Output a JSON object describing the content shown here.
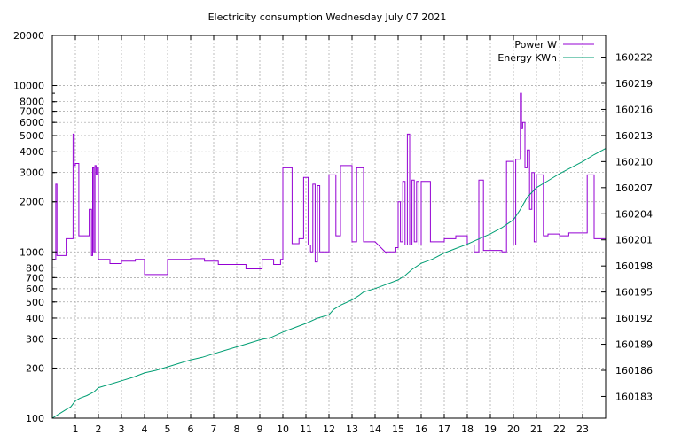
{
  "chart_data": {
    "type": "line",
    "title": "Electricity consumption Wednesday July 07 2021",
    "xlabel": "",
    "ylabel": "",
    "xlim": [
      0,
      24
    ],
    "x_ticks": [
      1,
      2,
      3,
      4,
      5,
      6,
      7,
      8,
      9,
      10,
      11,
      12,
      13,
      14,
      15,
      16,
      17,
      18,
      19,
      20,
      21,
      22,
      23
    ],
    "y_scale": "log",
    "ylim": [
      100,
      20000
    ],
    "y_ticks": [
      100,
      200,
      300,
      400,
      500,
      600,
      700,
      800,
      1000,
      2000,
      3000,
      4000,
      5000,
      6000,
      7000,
      8000,
      10000,
      20000
    ],
    "y2lim": [
      160180.5,
      160224.5
    ],
    "y2_ticks": [
      160183,
      160186,
      160189,
      160192,
      160195,
      160198,
      160201,
      160204,
      160207,
      160210,
      160213,
      160216,
      160219,
      160222
    ],
    "grid": true,
    "legend_position": "top-right",
    "series": [
      {
        "name": "Power W",
        "color": "#9400d3",
        "axis": "left",
        "x": [
          0,
          0.15,
          0.15,
          0.2,
          0.2,
          0.6,
          0.6,
          0.9,
          0.9,
          0.95,
          0.95,
          1.0,
          1.0,
          1.15,
          1.15,
          1.6,
          1.6,
          1.7,
          1.7,
          1.75,
          1.75,
          1.8,
          1.8,
          1.85,
          1.85,
          1.9,
          1.9,
          1.95,
          1.95,
          2.0,
          2.0,
          2.5,
          2.5,
          3.0,
          3.0,
          3.6,
          3.6,
          4.0,
          4.0,
          5.0,
          5.0,
          6.0,
          6.0,
          6.6,
          6.6,
          7.2,
          7.2,
          8.4,
          8.4,
          9.1,
          9.1,
          9.6,
          9.6,
          9.9,
          9.9,
          10.0,
          10.0,
          10.4,
          10.4,
          10.7,
          10.7,
          10.9,
          10.9,
          11.1,
          11.1,
          11.2,
          11.2,
          11.3,
          11.3,
          11.4,
          11.4,
          11.5,
          11.5,
          11.6,
          11.6,
          12.0,
          12.0,
          12.3,
          12.3,
          12.5,
          12.5,
          13.0,
          13.0,
          13.2,
          13.2,
          13.5,
          13.5,
          14.0,
          14.5,
          14.5,
          14.9,
          14.9,
          15.0,
          15.0,
          15.1,
          15.1,
          15.2,
          15.2,
          15.3,
          15.3,
          15.4,
          15.4,
          15.5,
          15.5,
          15.6,
          15.6,
          15.7,
          15.7,
          15.8,
          15.8,
          15.9,
          15.9,
          16.0,
          16.0,
          16.4,
          16.4,
          17.0,
          17.0,
          17.5,
          17.5,
          18.0,
          18.0,
          18.3,
          18.3,
          18.5,
          18.5,
          18.7,
          18.7,
          19.5,
          19.5,
          19.7,
          19.7,
          20.0,
          20.0,
          20.1,
          20.1,
          20.3,
          20.3,
          20.35,
          20.35,
          20.4,
          20.4,
          20.5,
          20.5,
          20.6,
          20.6,
          20.7,
          20.7,
          20.8,
          20.8,
          20.9,
          20.9,
          21.0,
          21.0,
          21.3,
          21.3,
          21.5,
          21.5,
          22.0,
          22.0,
          22.4,
          22.4,
          22.8,
          22.8,
          23.2,
          23.2,
          23.5,
          23.5,
          23.7,
          23.7,
          24.0
        ],
        "values": [
          900,
          900,
          2550,
          2550,
          950,
          950,
          1200,
          1200,
          5100,
          5100,
          3300,
          3300,
          3400,
          3400,
          1250,
          1250,
          1800,
          1800,
          950,
          950,
          3200,
          3200,
          1000,
          1000,
          3300,
          3300,
          2900,
          2900,
          3200,
          3200,
          900,
          900,
          850,
          850,
          880,
          880,
          900,
          900,
          730,
          730,
          900,
          900,
          910,
          910,
          880,
          880,
          840,
          840,
          790,
          790,
          900,
          900,
          840,
          840,
          900,
          900,
          3200,
          3200,
          1120,
          1120,
          1200,
          1200,
          2800,
          2800,
          1100,
          1100,
          1000,
          1000,
          2550,
          2550,
          870,
          870,
          2500,
          2500,
          1000,
          1000,
          2900,
          2900,
          1250,
          1250,
          3300,
          3300,
          1150,
          1150,
          3200,
          3200,
          1150,
          1150,
          980,
          1000,
          1000,
          1060,
          1060,
          2000,
          2000,
          1150,
          1150,
          2650,
          2650,
          1100,
          1100,
          5100,
          5100,
          1100,
          1100,
          2700,
          2700,
          1150,
          1150,
          2650,
          2650,
          1100,
          1100,
          2650,
          2650,
          1150,
          1150,
          1200,
          1200,
          1250,
          1250,
          1100,
          1100,
          1000,
          1000,
          2700,
          2700,
          1020,
          1020,
          1000,
          1000,
          3500,
          3500,
          1100,
          1100,
          3600,
          3600,
          9000,
          9000,
          5500,
          5500,
          6000,
          6000,
          3200,
          3200,
          4100,
          4100,
          1800,
          1800,
          3000,
          3000,
          1150,
          1150,
          2900,
          2900,
          1250,
          1250,
          1280,
          1280,
          1250,
          1250,
          1300,
          1300,
          1300,
          1300,
          2900,
          2900,
          1200,
          1200,
          1200,
          1200
        ]
      },
      {
        "name": "Energy KWh",
        "color": "#009e73",
        "axis": "right",
        "x": [
          0,
          0.3,
          0.6,
          0.8,
          1.0,
          1.2,
          1.5,
          1.8,
          2.0,
          2.5,
          3.0,
          3.5,
          4.0,
          4.5,
          5.0,
          5.5,
          6.0,
          6.5,
          7.0,
          7.5,
          8.0,
          8.5,
          9.0,
          9.5,
          10.0,
          10.5,
          11.0,
          11.5,
          12.0,
          12.2,
          12.5,
          13.0,
          13.3,
          13.5,
          14.0,
          14.5,
          15.0,
          15.3,
          15.6,
          16.0,
          16.5,
          17.0,
          17.5,
          18.0,
          18.5,
          19.0,
          19.5,
          20.0,
          20.3,
          20.6,
          21.0,
          21.5,
          22.0,
          22.5,
          23.0,
          23.5,
          24.0
        ],
        "values": [
          160180.5,
          160181.0,
          160181.5,
          160181.8,
          160182.5,
          160182.8,
          160183.1,
          160183.5,
          160184.0,
          160184.4,
          160184.8,
          160185.2,
          160185.7,
          160186.0,
          160186.4,
          160186.8,
          160187.2,
          160187.5,
          160187.9,
          160188.3,
          160188.7,
          160189.1,
          160189.5,
          160189.8,
          160190.4,
          160190.9,
          160191.4,
          160192.0,
          160192.4,
          160193.0,
          160193.5,
          160194.1,
          160194.6,
          160195.0,
          160195.4,
          160195.9,
          160196.4,
          160196.9,
          160197.6,
          160198.3,
          160198.8,
          160199.5,
          160200.0,
          160200.5,
          160201.1,
          160201.7,
          160202.4,
          160203.3,
          160204.5,
          160205.9,
          160207.0,
          160207.8,
          160208.6,
          160209.3,
          160210.0,
          160210.8,
          160211.5
        ]
      }
    ]
  }
}
